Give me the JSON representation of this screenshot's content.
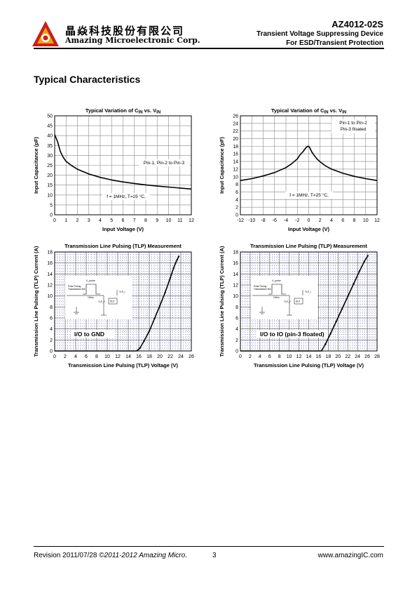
{
  "header": {
    "company_cn": "晶焱科技股份有限公司",
    "company_en": "Amazing Microelectronic Corp.",
    "part_number": "AZ4012-02S",
    "subtitle_line1": "Transient Voltage Suppressing Device",
    "subtitle_line2": "For ESD/Transient Protection",
    "logo_icon": "amazing-triangle-logo",
    "logo_colors": [
      "#c81e1e",
      "#f0a400"
    ]
  },
  "section_title": "Typical Characteristics",
  "footer": {
    "revision": "Revision 2011/07/28",
    "copyright": "©2011-2012 Amazing Micro.",
    "page": "3",
    "url": "www.amazingIC.com"
  },
  "chart_data": [
    {
      "type": "line",
      "title": "Typical Variation of C",
      "title_sub1": "IN",
      "title_mid": " vs. V",
      "title_sub2": "IN",
      "xlabel": "Input Voltage (V)",
      "ylabel": "Input Capacitance (pF)",
      "xlim": [
        0,
        12
      ],
      "ylim": [
        0,
        50
      ],
      "xticks": [
        "0",
        "1",
        "2",
        "3",
        "4",
        "5",
        "6",
        "7",
        "8",
        "9",
        "10",
        "11",
        "12"
      ],
      "yticks": [
        "0",
        "5",
        "10",
        "15",
        "20",
        "25",
        "30",
        "35",
        "40",
        "45",
        "50"
      ],
      "grid": true,
      "annotations": [
        "Pin-1, Pin-2 to Pin-3",
        "f = 1MHz, T=25 °C,"
      ],
      "series": [
        {
          "x": [
            0,
            0.25,
            0.5,
            0.75,
            1,
            1.5,
            2,
            3,
            4,
            5,
            6,
            7,
            8,
            9,
            10,
            11,
            12
          ],
          "y": [
            40.5,
            37,
            32,
            29,
            27,
            24.8,
            23,
            20.6,
            18.9,
            17.6,
            16.6,
            15.8,
            15.1,
            14.5,
            14,
            13.5,
            13
          ]
        }
      ]
    },
    {
      "type": "line",
      "title": "Typical Variation of C",
      "title_sub1": "IN",
      "title_mid": " vs. V",
      "title_sub2": "IN",
      "xlabel": "Input Voltage (V)",
      "ylabel": "Input Capacitance (pF)",
      "xlim": [
        -12,
        12
      ],
      "ylim": [
        0,
        26
      ],
      "xticks": [
        "-12",
        "-10",
        "-8",
        "-6",
        "-4",
        "-2",
        "0",
        "2",
        "4",
        "6",
        "8",
        "10",
        "12"
      ],
      "yticks": [
        "0",
        "2",
        "4",
        "6",
        "8",
        "10",
        "12",
        "14",
        "16",
        "18",
        "20",
        "22",
        "24",
        "26"
      ],
      "grid": true,
      "annotations": [
        "Pin-1 to Pin-2",
        "Pin-3 floated",
        "f = 1MHz, T=25 °C,"
      ],
      "series": [
        {
          "x": [
            -12,
            -10,
            -8,
            -6,
            -4,
            -3,
            -2,
            -1.5,
            -1,
            -0.5,
            -0.2,
            0,
            0.2,
            0.5,
            1,
            1.5,
            2,
            3,
            4,
            6,
            8,
            10,
            12
          ],
          "y": [
            9,
            9.5,
            10.2,
            11.1,
            12.4,
            13.4,
            14.7,
            15.8,
            16.6,
            17.6,
            18,
            18,
            17.6,
            16.6,
            15.5,
            14.6,
            13.9,
            12.8,
            12,
            10.9,
            10.1,
            9.5,
            9
          ]
        }
      ]
    },
    {
      "type": "line",
      "title": "Transmission Line Pulsing (TLP) Measurement",
      "xlabel": "Transmission Line Pulsing (TLP) Voltage (V)",
      "ylabel": "Transmission Line Pulsing (TLP) Current (A)",
      "xlim": [
        0,
        26
      ],
      "ylim": [
        0,
        18
      ],
      "xticks": [
        "0",
        "2",
        "4",
        "6",
        "8",
        "10",
        "12",
        "14",
        "16",
        "18",
        "20",
        "22",
        "24",
        "26"
      ],
      "yticks": [
        "0",
        "2",
        "4",
        "6",
        "8",
        "10",
        "12",
        "14",
        "16",
        "18"
      ],
      "grid": true,
      "annotations": [
        "I/O to GND"
      ],
      "inset_labels": [
        "V_pulse",
        "Pulse Timing",
        "Transmission line",
        "100ns",
        "DUT",
        "TLP_V",
        "TLP_I"
      ],
      "series": [
        {
          "x": [
            0,
            15,
            15.6,
            16.2,
            17,
            18,
            19,
            20,
            21,
            22,
            22.6,
            23,
            23.3,
            23.6
          ],
          "y": [
            0,
            0,
            0,
            0.5,
            1.8,
            3.6,
            5.9,
            8.2,
            10.6,
            13.3,
            15,
            16,
            16.6,
            17.2
          ]
        }
      ]
    },
    {
      "type": "line",
      "title": "Transmission Line Pulsing (TLP) Measurement",
      "xlabel": "Transmission Line Pulsing (TLP) Voltage (V)",
      "ylabel": "Transmission Line Pulsing (TLP) Current (A)",
      "xlim": [
        0,
        28
      ],
      "ylim": [
        0,
        18
      ],
      "xticks": [
        "0",
        "2",
        "4",
        "6",
        "8",
        "10",
        "12",
        "14",
        "16",
        "18",
        "20",
        "22",
        "24",
        "26",
        "28"
      ],
      "yticks": [
        "0",
        "2",
        "4",
        "6",
        "8",
        "10",
        "12",
        "14",
        "16",
        "18"
      ],
      "grid": true,
      "annotations": [
        "I/O to IO (pin-3 floated)"
      ],
      "inset_labels": [
        "V_pulse",
        "Pulse Timing",
        "Transmission line",
        "100ns",
        "DUT",
        "TLP_V",
        "TLP_I"
      ],
      "series": [
        {
          "x": [
            0,
            16,
            16.6,
            17.4,
            18.5,
            19.6,
            20.8,
            22,
            23.2,
            24.4,
            25.4,
            26.1
          ],
          "y": [
            0,
            0,
            0,
            1.2,
            3.2,
            5.3,
            7.6,
            9.9,
            12.2,
            14.5,
            16.3,
            17.3
          ]
        }
      ]
    }
  ]
}
